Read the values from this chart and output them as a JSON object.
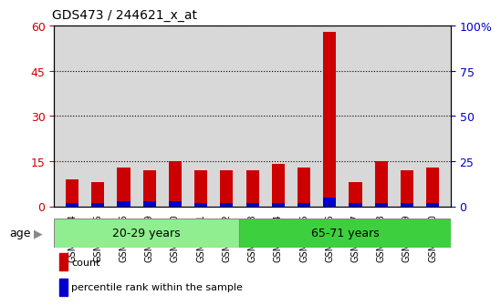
{
  "title": "GDS473 / 244621_x_at",
  "samples": [
    "GSM10354",
    "GSM10355",
    "GSM10356",
    "GSM10359",
    "GSM10360",
    "GSM10361",
    "GSM10362",
    "GSM10363",
    "GSM10364",
    "GSM10365",
    "GSM10366",
    "GSM10367",
    "GSM10368",
    "GSM10369",
    "GSM10370"
  ],
  "counts": [
    9,
    8,
    13,
    12,
    15,
    12,
    12,
    12,
    14,
    13,
    58,
    8,
    15,
    12,
    13
  ],
  "percentile_raw": [
    2,
    2,
    3,
    3,
    3,
    2,
    2,
    2,
    2,
    2,
    5,
    2,
    2,
    2,
    2
  ],
  "group1_label": "20-29 years",
  "group2_label": "65-71 years",
  "group1_count": 7,
  "group2_count": 8,
  "age_label": "age",
  "ylim_left": [
    0,
    60
  ],
  "ylim_right": [
    0,
    100
  ],
  "yticks_left": [
    0,
    15,
    30,
    45,
    60
  ],
  "yticks_right": [
    0,
    25,
    50,
    75,
    100
  ],
  "ytick_labels_left": [
    "0",
    "15",
    "30",
    "45",
    "60"
  ],
  "ytick_labels_right": [
    "0",
    "25",
    "50",
    "75",
    "100%"
  ],
  "bar_color": "#cc0000",
  "percentile_color": "#0000cc",
  "bg_color_plot": "#d8d8d8",
  "group1_color": "#90ee90",
  "group2_color": "#3ecf3e",
  "legend_count_label": "count",
  "legend_percentile_label": "percentile rank within the sample",
  "bar_width": 0.5
}
